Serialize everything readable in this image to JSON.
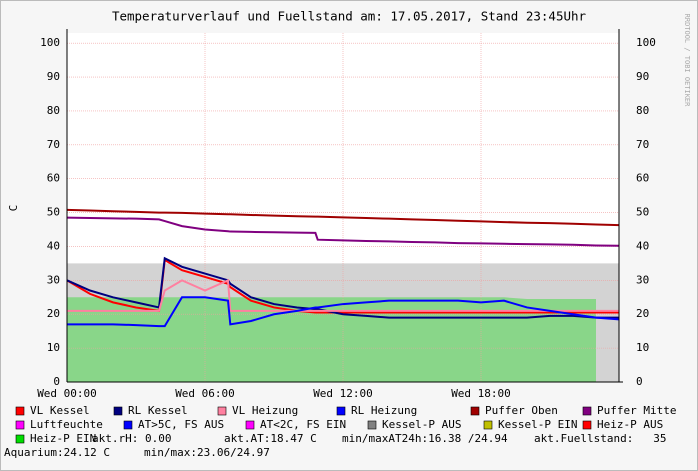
{
  "chart_data": {
    "type": "line",
    "title": "Temperaturverlauf und Fuellstand am: 17.05.2017, Stand 23:45Uhr",
    "y_label": "C",
    "side_text": "RRDTOOL / TOBI OETIKER",
    "x": [
      0,
      1,
      2,
      3,
      4,
      4.25,
      5,
      6,
      7,
      7.1,
      8,
      9,
      10,
      10.8,
      10.9,
      12,
      13,
      14,
      15,
      16,
      17,
      18,
      19,
      20,
      21,
      22,
      23,
      24
    ],
    "xlim": [
      0,
      24
    ],
    "xticks": [
      {
        "value": 0,
        "label": "Wed 00:00"
      },
      {
        "value": 6,
        "label": "Wed 06:00"
      },
      {
        "value": 12,
        "label": "Wed 12:00"
      },
      {
        "value": 18,
        "label": "Wed 18:00"
      }
    ],
    "ylim": [
      0,
      103
    ],
    "yticks": [
      0,
      10,
      20,
      30,
      40,
      50,
      60,
      70,
      80,
      90,
      100
    ],
    "grid": true,
    "series": [
      {
        "name": "VL Kessel",
        "color": "#ff0000",
        "values": [
          30,
          26,
          23.5,
          22,
          21,
          36,
          33,
          31,
          29,
          28,
          24,
          22,
          21,
          20.5,
          20.5,
          20.5,
          20.5,
          20.5,
          20.5,
          20.5,
          20.5,
          20.5,
          20.5,
          20.5,
          20.5,
          20.5,
          20.5,
          20.5
        ]
      },
      {
        "name": "RL Kessel",
        "color": "#000080",
        "values": [
          30,
          27,
          25,
          23.5,
          22,
          36.5,
          34,
          32,
          30,
          29,
          25,
          23,
          22,
          21.5,
          21.5,
          20,
          19.5,
          19,
          19,
          19,
          19,
          19,
          19,
          19,
          19.5,
          19.5,
          19,
          19
        ]
      },
      {
        "name": "VL Heizung",
        "color": "#ff80a0",
        "values": [
          21,
          21,
          21,
          21,
          21,
          27,
          30,
          27,
          30,
          21,
          21,
          21,
          21,
          21,
          21,
          21,
          21,
          21,
          21,
          21,
          21,
          21,
          21,
          21,
          21,
          21,
          21,
          21
        ]
      },
      {
        "name": "RL Heizung",
        "color": "#0000ff",
        "values": [
          17,
          17,
          17,
          16.8,
          16.5,
          16.5,
          25,
          25,
          24,
          17,
          18,
          20,
          21,
          22,
          22,
          23,
          23.5,
          24,
          24,
          24,
          24,
          23.5,
          24,
          22,
          21,
          20,
          19,
          18.5
        ]
      },
      {
        "name": "Puffer Oben",
        "color": "#a00000",
        "values": [
          50.8,
          50.6,
          50.4,
          50.2,
          50,
          50,
          49.9,
          49.7,
          49.5,
          49.5,
          49.3,
          49.1,
          48.9,
          48.8,
          48.8,
          48.6,
          48.4,
          48.2,
          48,
          47.8,
          47.6,
          47.4,
          47.2,
          47,
          46.9,
          46.7,
          46.5,
          46.3
        ]
      },
      {
        "name": "Puffer Mitte",
        "color": "#800080",
        "values": [
          48.5,
          48.4,
          48.3,
          48.2,
          48,
          47.5,
          46,
          45,
          44.5,
          44.4,
          44.3,
          44.2,
          44.1,
          44,
          42,
          41.8,
          41.6,
          41.5,
          41.3,
          41.2,
          41,
          40.9,
          40.8,
          40.7,
          40.6,
          40.5,
          40.3,
          40.2
        ]
      },
      {
        "name": "Luftfeuchte",
        "color": "#ff00ff"
      },
      {
        "name": "AT>5C, FS AUS",
        "color": "#0000ff"
      },
      {
        "name": "AT<2C, FS EIN",
        "color": "#ff00ff"
      },
      {
        "name": "Kessel-P AUS",
        "color": "#808080",
        "area": true,
        "values": [
          35,
          35,
          35,
          35,
          35,
          35,
          35,
          35,
          35,
          35,
          35,
          35,
          35,
          35,
          35,
          35,
          35,
          35,
          35,
          35,
          35,
          35,
          35,
          35,
          35,
          35,
          35,
          35
        ]
      },
      {
        "name": "Kessel-P EIN",
        "color": "#c0c000"
      },
      {
        "name": "Heiz-P AUS",
        "color": "#ff0000"
      },
      {
        "name": "Heiz-P EIN",
        "color": "#00dd00",
        "area": true,
        "values": [
          25,
          25,
          25,
          25,
          25,
          25,
          25,
          25,
          25,
          25,
          25,
          25,
          25,
          25,
          25,
          25,
          25,
          25,
          25,
          25,
          25,
          25,
          25,
          24.5,
          24.5,
          24.5,
          24.5,
          null
        ]
      }
    ],
    "footer": [
      "akt.rH: 0.00",
      "akt.AT:18.47 C",
      "min/maxAT24h:16.38 /24.94",
      "akt.Fuellstand:   35",
      "Aquarium:24.12 C",
      "min/max:23.06/24.97"
    ]
  }
}
